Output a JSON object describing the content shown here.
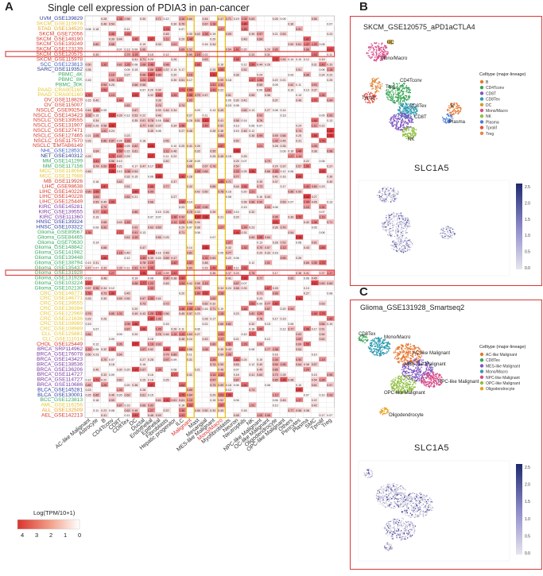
{
  "panels": {
    "a": "A",
    "b": "B",
    "c": "C"
  },
  "heatmap": {
    "title": "Single cell expression of PDIA3 in pan-cancer",
    "legend_title": "Log(TPM/10+1)",
    "legend_ticks": [
      "4",
      "3",
      "2",
      "1",
      "0"
    ],
    "columns": [
      {
        "label": "AC-like Malignant",
        "color": "#333333"
      },
      {
        "label": "Astrocyte",
        "color": "#333333"
      },
      {
        "label": "B",
        "color": "#333333"
      },
      {
        "label": "CD4Tconv",
        "color": "#333333"
      },
      {
        "label": "CD8T",
        "color": "#333333"
      },
      {
        "label": "CD8Tex",
        "color": "#333333"
      },
      {
        "label": "DC",
        "color": "#333333"
      },
      {
        "label": "Ductal",
        "color": "#333333"
      },
      {
        "label": "Endothelial",
        "color": "#333333"
      },
      {
        "label": "Epithelial",
        "color": "#333333"
      },
      {
        "label": "Fibroblasts",
        "color": "#333333"
      },
      {
        "label": "Hepatic progenitor",
        "color": "#333333"
      },
      {
        "label": "ILC",
        "color": "#333333"
      },
      {
        "label": "Malignant",
        "color": "#e03030"
      },
      {
        "label": "Mast",
        "color": "#333333"
      },
      {
        "label": "Mesangial",
        "color": "#333333"
      },
      {
        "label": "MES-like Malignant",
        "color": "#333333"
      },
      {
        "label": "Mono/Macro",
        "color": "#e03030"
      },
      {
        "label": "Myofibroblasts",
        "color": "#333333"
      },
      {
        "label": "Neuron",
        "color": "#333333"
      },
      {
        "label": "Neutrophils",
        "color": "#333333"
      },
      {
        "label": "NK",
        "color": "#333333"
      },
      {
        "label": "NPC-like Malignant",
        "color": "#333333"
      },
      {
        "label": "OC-like Malignant",
        "color": "#333333"
      },
      {
        "label": "Oligodendrocyte",
        "color": "#333333"
      },
      {
        "label": "OPC-like Malignant",
        "color": "#333333"
      },
      {
        "label": "Others",
        "color": "#333333"
      },
      {
        "label": "Pericytes",
        "color": "#333333"
      },
      {
        "label": "Plasma",
        "color": "#333333"
      },
      {
        "label": "SMC",
        "color": "#333333"
      },
      {
        "label": "Tprolif",
        "color": "#333333"
      },
      {
        "label": "Treg",
        "color": "#333333"
      }
    ],
    "rows": [
      {
        "label": "UVM_GSE139829",
        "color": "#2e3aa0"
      },
      {
        "label": "SKCM_GSE115978",
        "color": "#e6c62e"
      },
      {
        "label": "STAD_GSE134520",
        "color": "#e8a020"
      },
      {
        "label": "SKCM_GSE72056",
        "color": "#d43a2a"
      },
      {
        "label": "SKCM_GSE148190",
        "color": "#d43a2a"
      },
      {
        "label": "SKCM_GSE139249",
        "color": "#d43a2a"
      },
      {
        "label": "SKCM_GSE123139",
        "color": "#d43a2a"
      },
      {
        "label": "SKCM_GSE120575",
        "color": "#d43a2a"
      },
      {
        "label": "SKCM_GSE115978",
        "color": "#d43a2a"
      },
      {
        "label": "SCC_GSE123813",
        "color": "#3a5fbf"
      },
      {
        "label": "SARC_GSE119352",
        "color": "#2a3a8a"
      },
      {
        "label": "PBMC_4K",
        "color": "#3aaa60"
      },
      {
        "label": "PBMC_8K",
        "color": "#3aaa60"
      },
      {
        "label": "PBMC_30K",
        "color": "#3aaa60"
      },
      {
        "label": "PAAD_CRA001160",
        "color": "#e6c62e"
      },
      {
        "label": "PAAD_CRA001160",
        "color": "#e6c62e"
      },
      {
        "label": "OV_GSE118828",
        "color": "#d43a2a"
      },
      {
        "label": "OV_GSE115007",
        "color": "#d43a2a"
      },
      {
        "label": "NSCLC_GSE99254",
        "color": "#d43a2a"
      },
      {
        "label": "NSCLC_GSE143423",
        "color": "#d43a2a"
      },
      {
        "label": "NSCLC_GSE139555",
        "color": "#d43a2a"
      },
      {
        "label": "NSCLC_GSE131907",
        "color": "#d43a2a"
      },
      {
        "label": "NSCLC_GSE127471",
        "color": "#d43a2a"
      },
      {
        "label": "NSCLC_GSE127465",
        "color": "#d43a2a"
      },
      {
        "label": "NSCLC_GSE117570",
        "color": "#d43a2a"
      },
      {
        "label": "NSCLC_EMTAB6149",
        "color": "#d43a2a"
      },
      {
        "label": "NHL_GSE128531",
        "color": "#3a5fbf"
      },
      {
        "label": "NET_GSE140312",
        "color": "#2a3a8a"
      },
      {
        "label": "MM_GSE141299",
        "color": "#3aaa60"
      },
      {
        "label": "MM_GSE117156",
        "color": "#3aaa60"
      },
      {
        "label": "MCC_GSE118056",
        "color": "#e6c62e"
      },
      {
        "label": "MCC_GSE117988",
        "color": "#e6c62e"
      },
      {
        "label": "MB_GSE119926",
        "color": "#d43a2a"
      },
      {
        "label": "LIHC_GSE98638",
        "color": "#d43a2a"
      },
      {
        "label": "LIHC_GSE140228",
        "color": "#d43a2a"
      },
      {
        "label": "LIHC_GSE140228",
        "color": "#d43a2a"
      },
      {
        "label": "LIHC_GSE125449",
        "color": "#d43a2a"
      },
      {
        "label": "KIRC_GSE145281",
        "color": "#7a3aa0"
      },
      {
        "label": "KIRC_GSE139555",
        "color": "#7a3aa0"
      },
      {
        "label": "KIRC_GSE111360",
        "color": "#7a3aa0"
      },
      {
        "label": "HNSC_GSE139324",
        "color": "#2e3aa0"
      },
      {
        "label": "HNSC_GSE103322",
        "color": "#2e3aa0"
      },
      {
        "label": "Glioma_GSE89567",
        "color": "#3aaa60"
      },
      {
        "label": "Glioma_GSE84465",
        "color": "#3aaa60"
      },
      {
        "label": "Glioma_GSE70630",
        "color": "#3aaa60"
      },
      {
        "label": "Glioma_GSE148842",
        "color": "#3aaa60"
      },
      {
        "label": "Glioma_GSE141982",
        "color": "#3aaa60"
      },
      {
        "label": "Glioma_GSE139448",
        "color": "#3aaa60"
      },
      {
        "label": "Glioma_GSE138794",
        "color": "#3aaa60"
      },
      {
        "label": "Glioma_GSE135437",
        "color": "#3aaa60"
      },
      {
        "label": "Glioma_GSE131928",
        "color": "#3aaa60"
      },
      {
        "label": "Glioma_GSE131928",
        "color": "#3aaa60"
      },
      {
        "label": "Glioma_GSE103224",
        "color": "#3aaa60"
      },
      {
        "label": "Glioma_GSE102130",
        "color": "#3aaa60"
      },
      {
        "label": "CRC_GSE146771",
        "color": "#e6c62e"
      },
      {
        "label": "CRC_GSE146771",
        "color": "#e6c62e"
      },
      {
        "label": "CRC_GSE139555",
        "color": "#e6c62e"
      },
      {
        "label": "CRC_GSE136394",
        "color": "#e6c62e"
      },
      {
        "label": "CRC_GSE122969",
        "color": "#e6c62e"
      },
      {
        "label": "CRC_GSE121636",
        "color": "#e6c62e"
      },
      {
        "label": "CRC_GSE108989",
        "color": "#e6c62e"
      },
      {
        "label": "CRC_GSE108989",
        "color": "#e6c62e"
      },
      {
        "label": "CLL_GSE125881",
        "color": "#e6c62e"
      },
      {
        "label": "CLL_GSE111014",
        "color": "#e6c62e"
      },
      {
        "label": "CHOL_GSE125449",
        "color": "#d43a2a"
      },
      {
        "label": "BRCA_SRP114962",
        "color": "#7a3aa0"
      },
      {
        "label": "BRCA_GSE176078",
        "color": "#7a3aa0"
      },
      {
        "label": "BRCA_GSE143423",
        "color": "#7a3aa0"
      },
      {
        "label": "BRCA_GSE138536",
        "color": "#7a3aa0"
      },
      {
        "label": "BRCA_GSE136206",
        "color": "#7a3aa0"
      },
      {
        "label": "BRCA_GSE114727",
        "color": "#7a3aa0"
      },
      {
        "label": "BRCA_GSE114727",
        "color": "#7a3aa0"
      },
      {
        "label": "BRCA_GSE110686",
        "color": "#7a3aa0"
      },
      {
        "label": "BLCA_GSE145281",
        "color": "#2e3aa0"
      },
      {
        "label": "BLCA_GSE130001",
        "color": "#2e3aa0"
      },
      {
        "label": "BCC_GSE123813",
        "color": "#3aaa60"
      },
      {
        "label": "AML_GSE116256",
        "color": "#e6c62e"
      },
      {
        "label": "ALL_GSE132509",
        "color": "#e8a020"
      },
      {
        "label": "AEL_GSE142213",
        "color": "#d43a2a"
      }
    ]
  },
  "chart_data": {
    "type": "heatmap",
    "title": "Single cell expression of PDIA3 in pan-cancer",
    "legend_title": "Log(TPM/10+1)",
    "color_range": [
      0,
      4
    ],
    "highlighted_rows": [
      "SKCM_GSE120575",
      "Glioma_GSE131928"
    ],
    "highlighted_columns": [
      "Malignant",
      "Mono/Macro"
    ],
    "sample_values": [
      {
        "row": "SKCM_GSE120575",
        "values": [
          0.11,
          0.31,
          0.31,
          1.46,
          1.86,
          0.54,
          0.4,
          0.11,
          0.17,
          0.11
        ]
      },
      {
        "row": "SKCM_GSE115978",
        "values": [
          0.19,
          0.12,
          0.25,
          0.26,
          0.89,
          0.61,
          0.69,
          0.36,
          0.64
        ]
      },
      {
        "row": "Glioma_GSE131928",
        "values": [
          0.32,
          0.82,
          0.67,
          1.87,
          0.36,
          0.02,
          0.46
        ]
      },
      {
        "row": "HNSC_GSE103322",
        "values": [
          0.7,
          0.61,
          1.25,
          1.18,
          1.44,
          1.78,
          1.51,
          1.13,
          0.53,
          1.83
        ]
      }
    ]
  },
  "umap_b": {
    "title": "SKCM_GSE120575_aPD1aCTLA4",
    "gene": "SLC1A5",
    "legend_title": "Celltype (major-lineage)",
    "celltypes": [
      {
        "name": "B",
        "color": "#e8772e"
      },
      {
        "name": "CD4Tconv",
        "color": "#3aa655"
      },
      {
        "name": "CD8T",
        "color": "#7e57c2"
      },
      {
        "name": "CD8Tex",
        "color": "#2e9bb0"
      },
      {
        "name": "DC",
        "color": "#c9a227"
      },
      {
        "name": "Mono/Macro",
        "color": "#d94d8a"
      },
      {
        "name": "NK",
        "color": "#8fbf3f"
      },
      {
        "name": "Plasma",
        "color": "#4d7bd4"
      },
      {
        "name": "Tprolif",
        "color": "#e94f3e"
      },
      {
        "name": "Treg",
        "color": "#e08a3c"
      }
    ],
    "cluster_labels": [
      "DC",
      "Mono/Macro",
      "Treg",
      "CD4Tconv",
      "Tprolif",
      "CD8Tex",
      "CD8T",
      "NK",
      "B",
      "Plasma"
    ],
    "scale_ticks": [
      "2.5",
      "2.0",
      "1.5",
      "1.0",
      "0.5",
      "0.0"
    ]
  },
  "umap_c": {
    "title": "Glioma_GSE131928_Smartseq2",
    "gene": "SLC1A5",
    "legend_title": "Celltype (major-lineage)",
    "celltypes": [
      {
        "name": "AC-like Malignant",
        "color": "#e8772e"
      },
      {
        "name": "CD8Tex",
        "color": "#3aa655"
      },
      {
        "name": "MES-like Malignant",
        "color": "#7e57c2"
      },
      {
        "name": "Mono/Macro",
        "color": "#2e9bb0"
      },
      {
        "name": "NPC-like Malignant",
        "color": "#d94d8a"
      },
      {
        "name": "OPC-like Malignant",
        "color": "#8fbf3f"
      },
      {
        "name": "Oligodendrocyte",
        "color": "#e8a020"
      }
    ],
    "cluster_labels": [
      "CD8Tex",
      "Mono/Macro",
      "AC-like Malignant",
      "MES-like Malignant",
      "NPC-like Malignant",
      "OPC-like Malignant",
      "Oligodendrocyte"
    ],
    "scale_ticks": [
      "2.5",
      "2.0",
      "1.5",
      "1.0",
      "0.5",
      "0.0"
    ]
  }
}
